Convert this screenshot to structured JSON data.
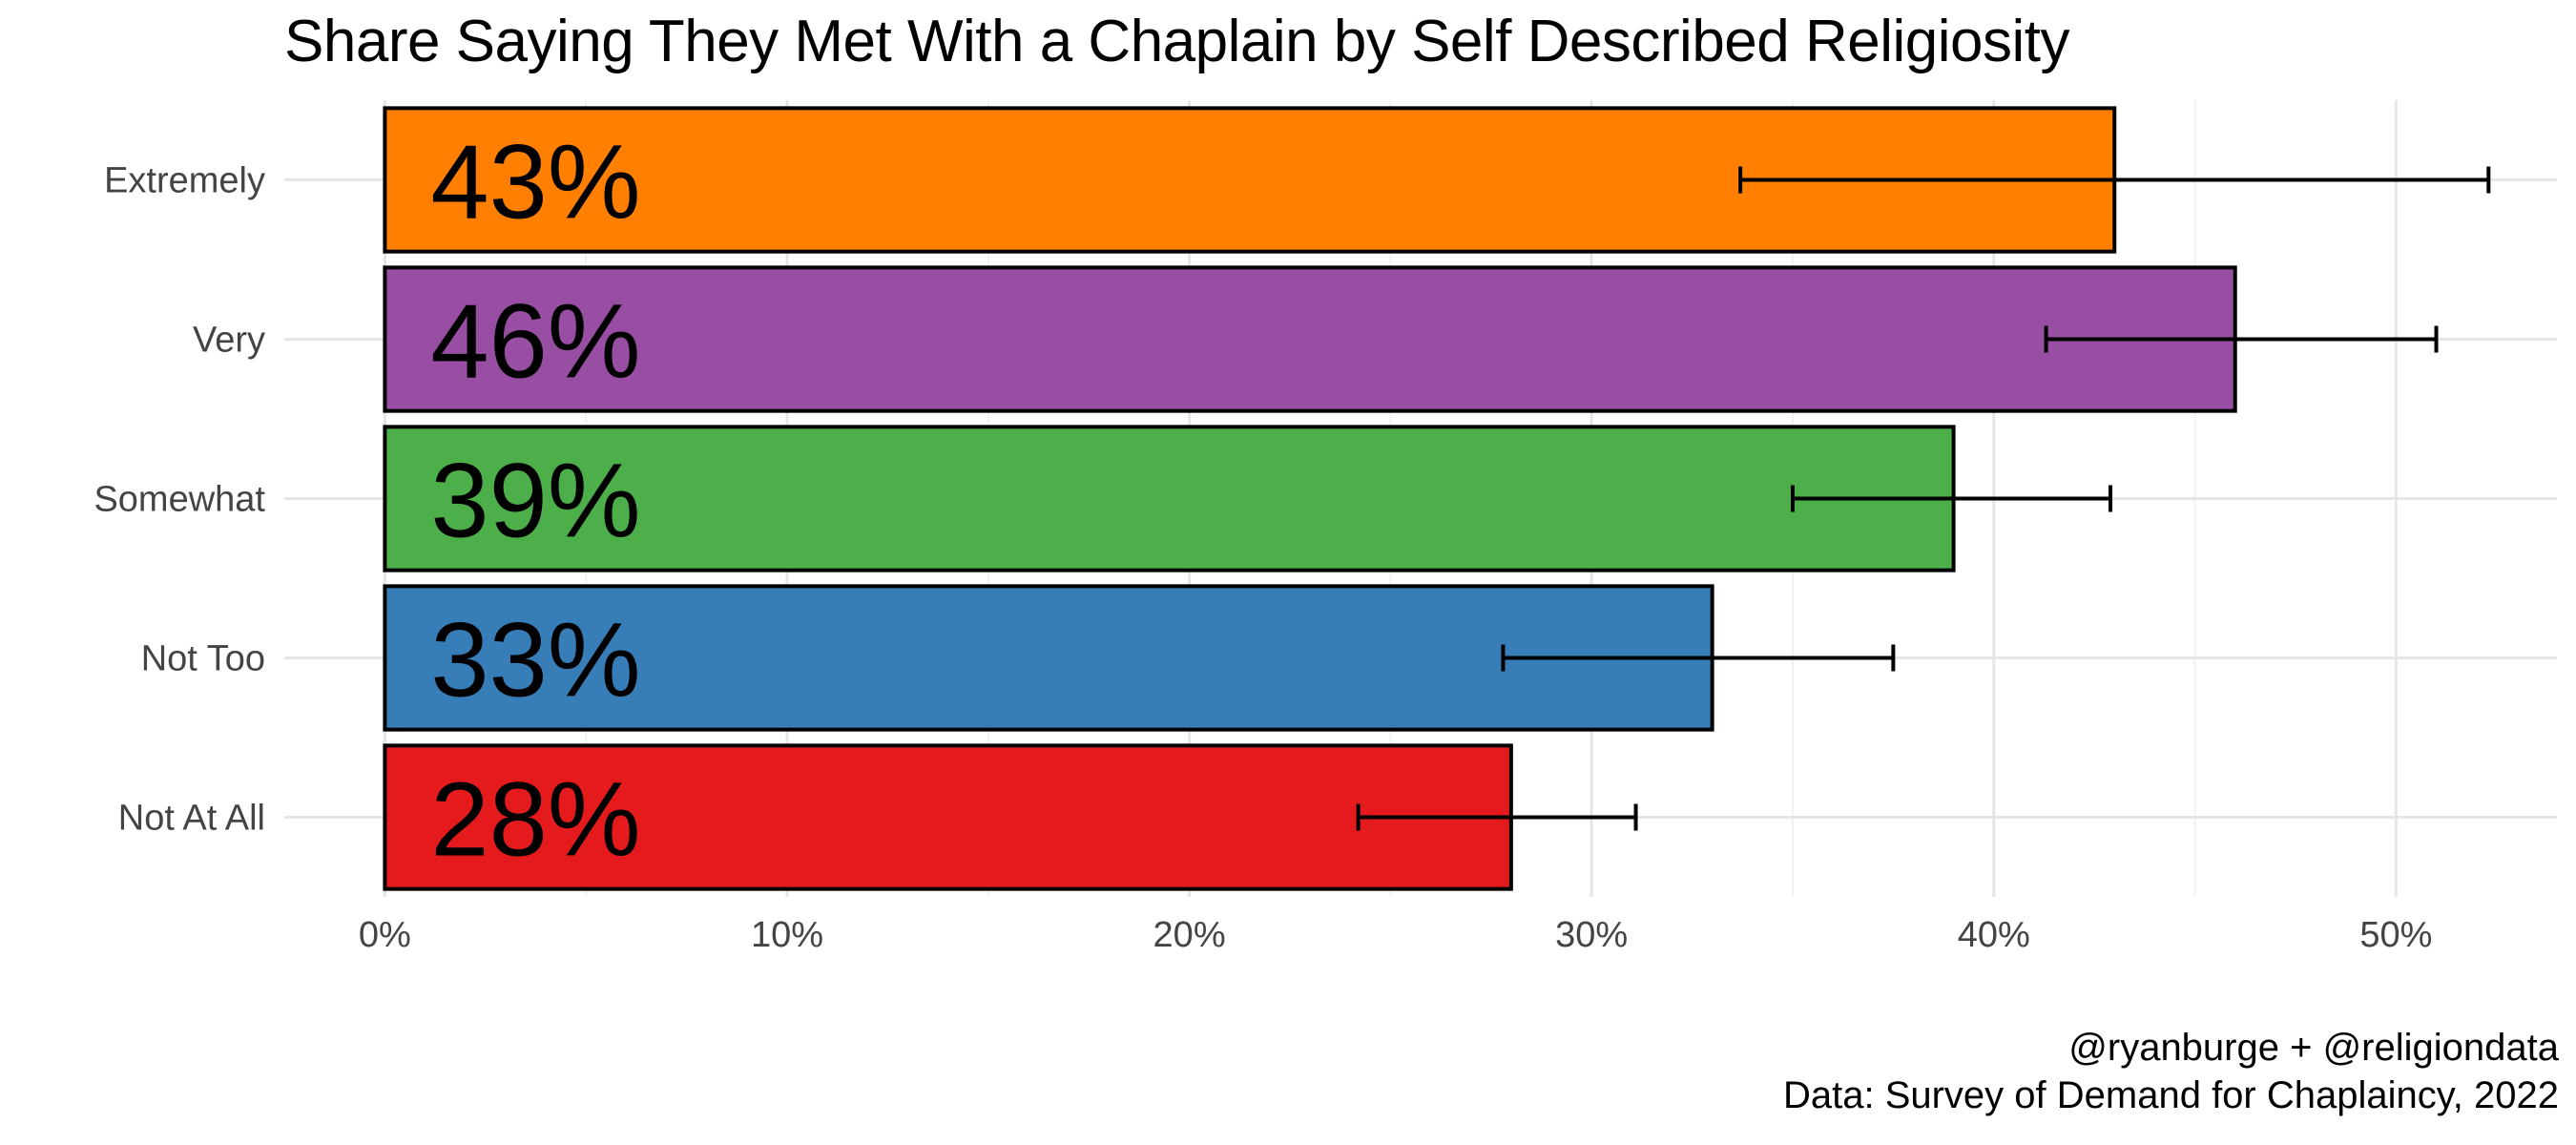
{
  "chart_data": {
    "type": "bar",
    "orientation": "horizontal",
    "title": "Share Saying They Met With a Chaplain by Self Described Religiosity",
    "xlabel": "",
    "ylabel": "",
    "categories": [
      "Extremely",
      "Very",
      "Somewhat",
      "Not Too",
      "Not At All"
    ],
    "values": [
      0.43,
      0.46,
      0.39,
      0.33,
      0.28
    ],
    "value_labels": [
      "43%",
      "46%",
      "39%",
      "33%",
      "28%"
    ],
    "error_low": [
      0.337,
      0.413,
      0.35,
      0.278,
      0.242
    ],
    "error_high": [
      0.523,
      0.51,
      0.429,
      0.375,
      0.311
    ],
    "colors": [
      "#FF7F00",
      "#984EA3",
      "#4DAF4A",
      "#377EB8",
      "#E41A1C"
    ],
    "xlim": [
      -0.025,
      0.54
    ],
    "xticks": [
      0,
      0.1,
      0.2,
      0.3,
      0.4,
      0.5
    ],
    "xtick_labels": [
      "0%",
      "10%",
      "20%",
      "30%",
      "40%",
      "50%"
    ],
    "grid": true,
    "legend": "none"
  },
  "captions": {
    "line1": "@ryanburge + @religiondata",
    "line2": "Data: Survey of Demand for Chaplaincy, 2022"
  }
}
